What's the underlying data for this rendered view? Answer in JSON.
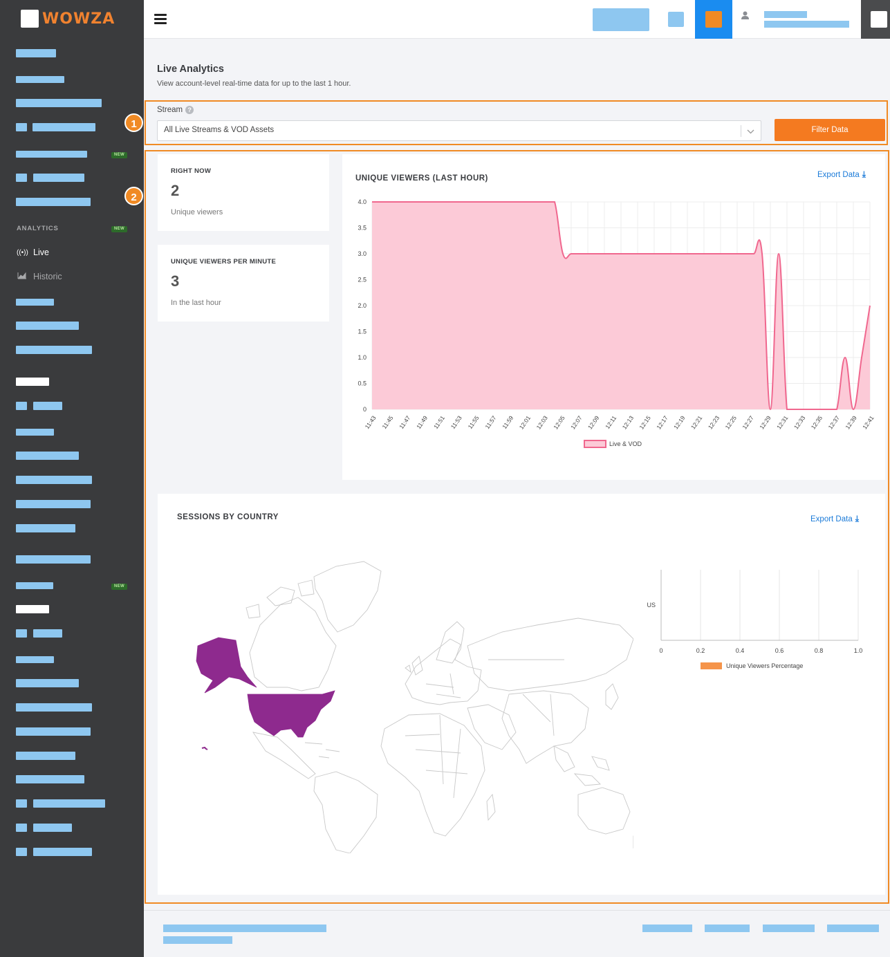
{
  "brand": {
    "name": "WOWZA"
  },
  "sidebar": {
    "badge_new": "NEW",
    "section_label": "ANALYTICS",
    "items": [
      {
        "label": "Live",
        "icon": "broadcast-icon",
        "active": true
      },
      {
        "label": "Historic",
        "icon": "area-chart-icon",
        "active": false
      }
    ]
  },
  "page": {
    "title": "Live Analytics",
    "subtitle": "View account-level real-time data for up to the last 1 hour."
  },
  "filter": {
    "stream_label": "Stream",
    "help_icon": "?",
    "selected_value": "All Live Streams & VOD Assets",
    "button_label": "Filter Data"
  },
  "callouts": [
    "1",
    "2"
  ],
  "stats": {
    "right_now": {
      "title": "RIGHT NOW",
      "value": "2",
      "sub": "Unique viewers"
    },
    "per_minute": {
      "title": "UNIQUE VIEWERS PER MINUTE",
      "value": "3",
      "sub": "In the last hour"
    }
  },
  "export_label": "Export Data",
  "map": {
    "title": "SESSIONS BY COUNTRY",
    "highlighted_color": "#8e2a8e"
  },
  "chart_data": [
    {
      "type": "area",
      "title": "UNIQUE VIEWERS (LAST HOUR)",
      "color": "#f0678e",
      "fill": "#fccad7",
      "ylim": [
        0,
        4
      ],
      "yticks": [
        "0",
        "0.5",
        "1.0",
        "1.5",
        "2.0",
        "2.5",
        "3.0",
        "3.5",
        "4.0"
      ],
      "xticks": [
        "11:43",
        "11:45",
        "11:47",
        "11:49",
        "11:51",
        "11:53",
        "11:55",
        "11:57",
        "11:59",
        "12:01",
        "12:03",
        "12:05",
        "12:07",
        "12:09",
        "12:11",
        "12:13",
        "12:15",
        "12:17",
        "12:19",
        "12:21",
        "12:23",
        "12:25",
        "12:27",
        "12:29",
        "12:31",
        "12:33",
        "12:35",
        "12:37",
        "12:39",
        "12:41"
      ],
      "series": [
        {
          "name": "Live & VOD",
          "values": [
            4,
            4,
            4,
            4,
            4,
            4,
            4,
            4,
            4,
            4,
            4,
            4,
            4,
            4,
            4,
            4,
            4,
            4,
            4,
            4,
            4,
            4,
            4,
            3,
            3,
            3,
            3,
            3,
            3,
            3,
            3,
            3,
            3,
            3,
            3,
            3,
            3,
            3,
            3,
            3,
            3,
            3,
            3,
            3,
            3,
            3,
            3,
            3,
            0,
            3,
            0,
            0,
            0,
            0,
            0,
            0,
            0,
            1,
            0,
            1,
            2
          ]
        }
      ],
      "grid": true,
      "legend": "bottom"
    },
    {
      "type": "bar",
      "orientation": "horizontal",
      "categories": [
        "US"
      ],
      "xlim": [
        0,
        1.0
      ],
      "xticks": [
        "0",
        "0.2",
        "0.4",
        "0.6",
        "0.8",
        "1.0"
      ],
      "series": [
        {
          "name": "Unique Viewers Percentage",
          "values": [
            0
          ]
        }
      ],
      "color": "#f5944a",
      "grid": true,
      "legend": "bottom"
    }
  ]
}
